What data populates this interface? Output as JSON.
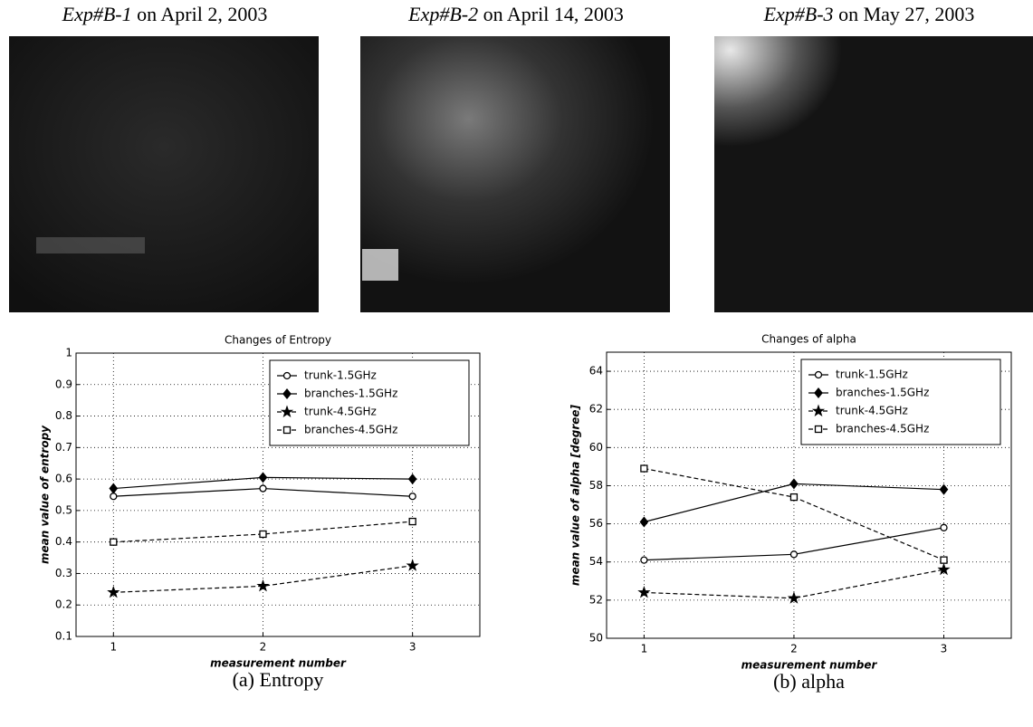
{
  "photos": [
    {
      "label": "Exp#B-1",
      "date": "on April 2, 2003"
    },
    {
      "label": "Exp#B-2",
      "date": "on April 14, 2003"
    },
    {
      "label": "Exp#B-3",
      "date": "on May 27, 2003"
    }
  ],
  "chart_data": [
    {
      "type": "line",
      "title": "Changes of Entropy",
      "x_label": "measurement number",
      "y_label": "mean value of entropy",
      "caption": "(a) Entropy",
      "x": [
        1,
        2,
        3
      ],
      "xlim": [
        0.75,
        3.45
      ],
      "xticks": [
        1,
        2,
        3
      ],
      "ylim": [
        0.1,
        1
      ],
      "yticks": [
        0.1,
        0.2,
        0.3,
        0.4,
        0.5,
        0.6,
        0.7,
        0.8,
        0.9,
        1
      ],
      "grid": true,
      "legend": "upper right",
      "series": [
        {
          "name": "trunk-1.5GHz",
          "color": "#000000",
          "marker": "circle",
          "dash": false,
          "values": [
            0.545,
            0.57,
            0.545
          ]
        },
        {
          "name": "branches-1.5GHz",
          "color": "#000000",
          "marker": "diamond",
          "dash": false,
          "values": [
            0.57,
            0.605,
            0.6
          ]
        },
        {
          "name": "trunk-4.5GHz",
          "color": "#000000",
          "marker": "star",
          "dash": true,
          "values": [
            0.24,
            0.26,
            0.325
          ]
        },
        {
          "name": "branches-4.5GHz",
          "color": "#000000",
          "marker": "square",
          "dash": true,
          "values": [
            0.4,
            0.425,
            0.465
          ]
        }
      ]
    },
    {
      "type": "line",
      "title": "Changes of alpha",
      "x_label": "measurement number",
      "y_label": "mean value of alpha [degree]",
      "caption": "(b) alpha",
      "x": [
        1,
        2,
        3
      ],
      "xlim": [
        0.75,
        3.45
      ],
      "xticks": [
        1,
        2,
        3
      ],
      "ylim": [
        50,
        65
      ],
      "yticks": [
        50,
        52,
        54,
        56,
        58,
        60,
        62,
        64
      ],
      "grid": true,
      "legend": "upper right",
      "series": [
        {
          "name": "trunk-1.5GHz",
          "color": "#000000",
          "marker": "circle",
          "dash": false,
          "values": [
            54.1,
            54.4,
            55.8
          ]
        },
        {
          "name": "branches-1.5GHz",
          "color": "#000000",
          "marker": "diamond",
          "dash": false,
          "values": [
            56.1,
            58.1,
            57.8
          ]
        },
        {
          "name": "trunk-4.5GHz",
          "color": "#000000",
          "marker": "star",
          "dash": true,
          "values": [
            52.4,
            52.1,
            53.6
          ]
        },
        {
          "name": "branches-4.5GHz",
          "color": "#000000",
          "marker": "square",
          "dash": true,
          "values": [
            58.9,
            57.4,
            54.1
          ]
        }
      ]
    }
  ]
}
